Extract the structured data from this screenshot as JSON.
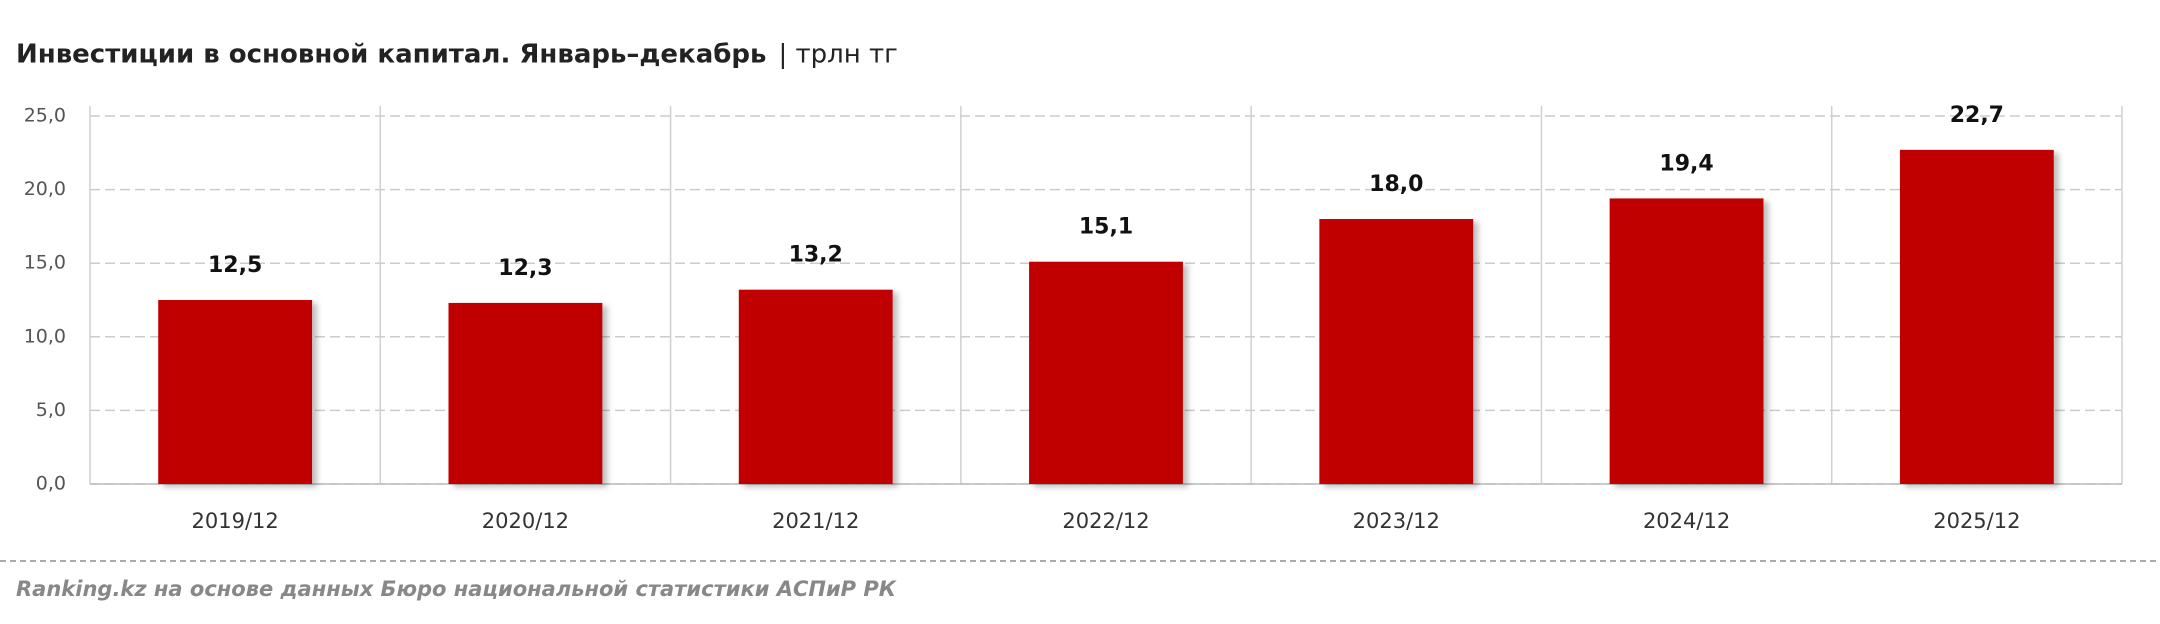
{
  "chart_data": {
    "type": "bar",
    "title": "Инвестиции в основной капитал. Январь–декабрь",
    "unit": "| трлн тг",
    "categories": [
      "2019/12",
      "2020/12",
      "2021/12",
      "2022/12",
      "2023/12",
      "2024/12",
      "2025/12"
    ],
    "values": [
      12.5,
      12.3,
      13.2,
      15.1,
      18.0,
      19.4,
      22.7
    ],
    "value_labels": [
      "12,5",
      "12,3",
      "13,2",
      "15,1",
      "18,0",
      "19,4",
      "22,7"
    ],
    "color": "#c00000",
    "ylim": [
      0,
      25
    ],
    "yticks": [
      {
        "value": 0,
        "label": "0,0"
      },
      {
        "value": 5,
        "label": "5,0"
      },
      {
        "value": 10,
        "label": "10,0"
      },
      {
        "value": 15,
        "label": "15,0"
      },
      {
        "value": 20,
        "label": "20,0"
      },
      {
        "value": 25,
        "label": "25,0"
      }
    ],
    "grid": true,
    "source": "Ranking.kz на основе данных Бюро национальной статистики АСПиР РК"
  }
}
